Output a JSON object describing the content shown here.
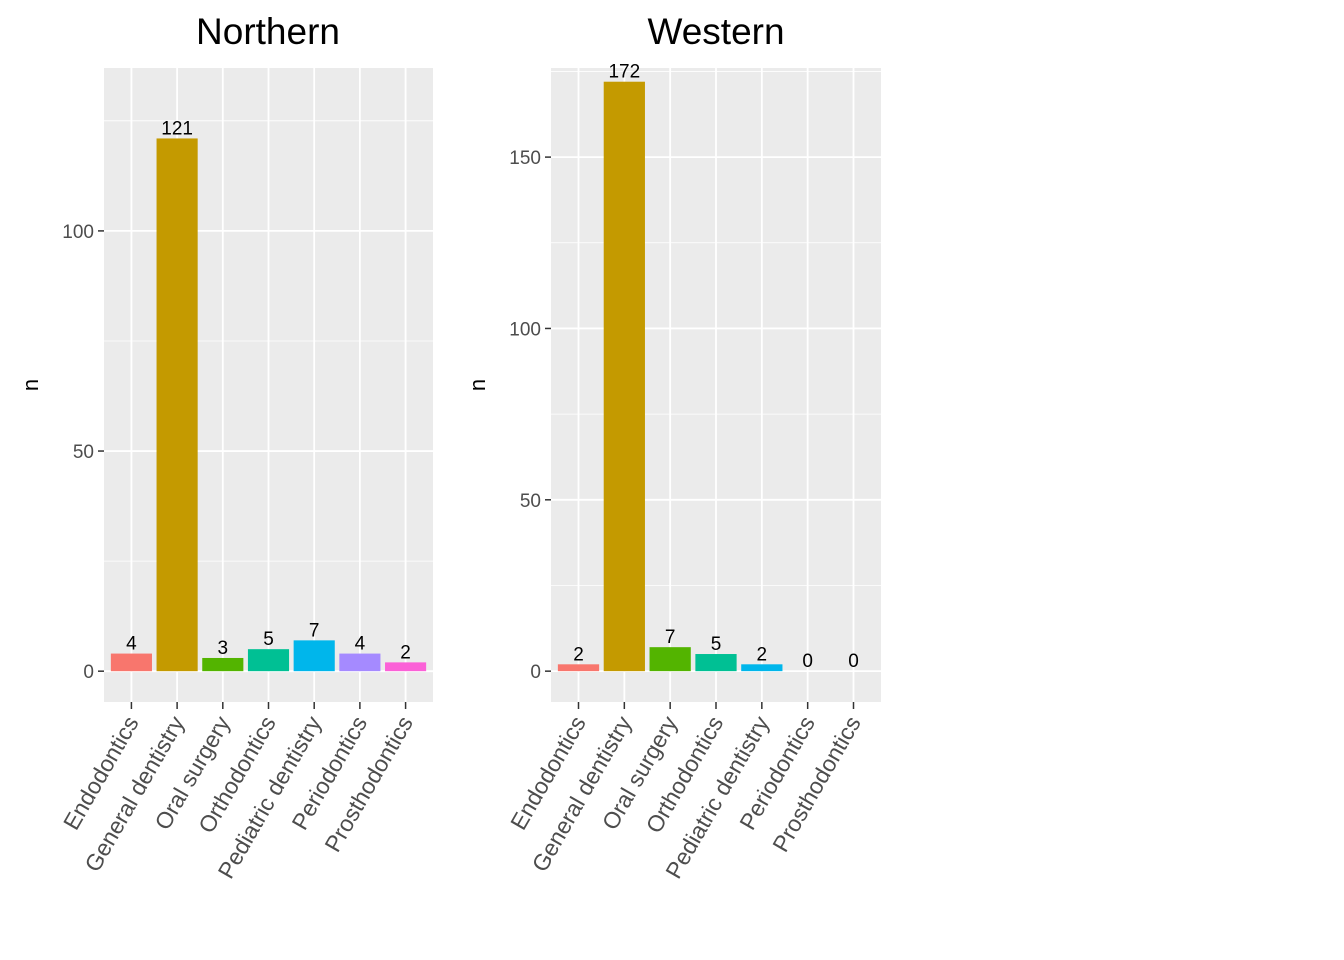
{
  "chart_data": [
    {
      "type": "bar",
      "title": "Northern",
      "ylabel": "n",
      "xlabel": "",
      "ylim": [
        -7,
        137
      ],
      "yticks": [
        0,
        50,
        100
      ],
      "categories": [
        "Endodontics",
        "General dentistry",
        "Oral surgery",
        "Orthodontics",
        "Pediatric dentistry",
        "Periodontics",
        "Prosthodontics"
      ],
      "values": [
        4,
        121,
        3,
        5,
        7,
        4,
        2
      ],
      "colors": [
        "#F8766D",
        "#C49A00",
        "#53B400",
        "#00C094",
        "#00B6EB",
        "#A58AFF",
        "#FB61D7"
      ],
      "grid": true,
      "legend": "none"
    },
    {
      "type": "bar",
      "title": "Western",
      "ylabel": "n",
      "xlabel": "",
      "ylim": [
        -9,
        176
      ],
      "yticks": [
        0,
        50,
        100,
        150
      ],
      "categories": [
        "Endodontics",
        "General dentistry",
        "Oral surgery",
        "Orthodontics",
        "Pediatric dentistry",
        "Periodontics",
        "Prosthodontics"
      ],
      "values": [
        2,
        172,
        7,
        5,
        2,
        0,
        0
      ],
      "colors": [
        "#F8766D",
        "#C49A00",
        "#53B400",
        "#00C094",
        "#00B6EB",
        "#A58AFF",
        "#FB61D7"
      ],
      "grid": true,
      "legend": "none"
    }
  ]
}
